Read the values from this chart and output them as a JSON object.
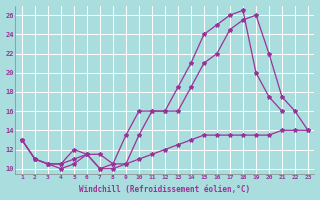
{
  "bg_color": "#aadddd",
  "grid_color": "#bbeeee",
  "line_color": "#993399",
  "xlabel": "Windchill (Refroidissement éolien,°C)",
  "xlim": [
    0.5,
    23.5
  ],
  "ylim": [
    9.5,
    27.0
  ],
  "xticks": [
    1,
    2,
    3,
    4,
    5,
    6,
    7,
    8,
    9,
    10,
    11,
    12,
    13,
    14,
    15,
    16,
    17,
    18,
    19,
    20,
    21,
    22,
    23
  ],
  "yticks": [
    10,
    12,
    14,
    16,
    18,
    20,
    22,
    24,
    26
  ],
  "s1_x": [
    1,
    2,
    3,
    4,
    5,
    6,
    7,
    8,
    9,
    10,
    11,
    12,
    13,
    14,
    15,
    16,
    17,
    18,
    19,
    20,
    21,
    22,
    23
  ],
  "s1_y": [
    13,
    11,
    10.5,
    10,
    10.5,
    11.5,
    10,
    10,
    10.5,
    11,
    11.5,
    12,
    12.5,
    13,
    13.5,
    13.5,
    13.5,
    13.5,
    13.5,
    13.5,
    14,
    14,
    14
  ],
  "s2_x": [
    1,
    2,
    3,
    4,
    5,
    6,
    7,
    8,
    9,
    10,
    11,
    12,
    13,
    14,
    15,
    16,
    17,
    18,
    19,
    20,
    21,
    22,
    23
  ],
  "s2_y": [
    13,
    11,
    10.5,
    10.5,
    11,
    11.5,
    11.5,
    10.5,
    10.5,
    13.5,
    16,
    16,
    16,
    18.5,
    21,
    22,
    24.5,
    25.5,
    26,
    22,
    17.5,
    16,
    14
  ],
  "s3_x": [
    1,
    2,
    3,
    4,
    5,
    6,
    7,
    8,
    9,
    10,
    11,
    12,
    13,
    14,
    15,
    16,
    17,
    18,
    19,
    20,
    21
  ],
  "s3_y": [
    13,
    11,
    10.5,
    10.5,
    12,
    11.5,
    10,
    10.5,
    13.5,
    16,
    16,
    16,
    18.5,
    21,
    24,
    25,
    26,
    26.5,
    20,
    17.5,
    16
  ]
}
